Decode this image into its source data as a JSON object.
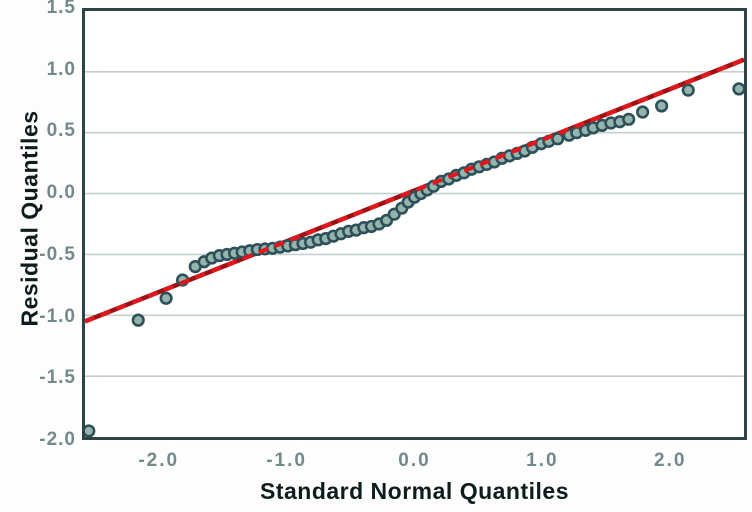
{
  "chart_data": {
    "type": "scatter",
    "title": "",
    "xlabel": "Standard Normal Quantiles",
    "ylabel": "Residual Quantiles",
    "xlim": [
      -2.6,
      2.6
    ],
    "ylim": [
      -2.0,
      1.5
    ],
    "grid": "horizontal-only",
    "legend": "none",
    "x_ticks": {
      "values": [
        -2.0,
        -1.0,
        0.0,
        1.0,
        2.0
      ],
      "labels": [
        "-2.0",
        "-1.0",
        "0.0",
        "1.0",
        "2.0"
      ]
    },
    "y_ticks": {
      "values": [
        1.5,
        1.0,
        0.5,
        0.0,
        -0.5,
        -1.0,
        -1.5,
        -2.0
      ],
      "labels": [
        "1.5",
        "1.0",
        "0.5",
        "0.0",
        "-0.5",
        "-1.0",
        "-1.5",
        "-2.0"
      ]
    },
    "gridline_y_values": [
      1.0,
      0.5,
      0.0,
      -0.5,
      -1.0,
      -1.5
    ],
    "reference_line": {
      "name": "normal-fit-line",
      "x1": -2.6,
      "y1": -1.05,
      "x2": 2.6,
      "y2": 1.1
    },
    "series": [
      {
        "name": "residual-quantile-points",
        "marker": "circle",
        "points": [
          [
            -2.57,
            -1.95
          ],
          [
            -2.18,
            -1.04
          ],
          [
            -1.96,
            -0.86
          ],
          [
            -1.83,
            -0.71
          ],
          [
            -1.73,
            -0.6
          ],
          [
            -1.66,
            -0.56
          ],
          [
            -1.6,
            -0.53
          ],
          [
            -1.54,
            -0.51
          ],
          [
            -1.48,
            -0.5
          ],
          [
            -1.42,
            -0.49
          ],
          [
            -1.36,
            -0.48
          ],
          [
            -1.3,
            -0.47
          ],
          [
            -1.24,
            -0.46
          ],
          [
            -1.18,
            -0.455
          ],
          [
            -1.12,
            -0.45
          ],
          [
            -1.06,
            -0.44
          ],
          [
            -1.0,
            -0.43
          ],
          [
            -0.94,
            -0.42
          ],
          [
            -0.88,
            -0.41
          ],
          [
            -0.82,
            -0.4
          ],
          [
            -0.76,
            -0.38
          ],
          [
            -0.7,
            -0.37
          ],
          [
            -0.64,
            -0.35
          ],
          [
            -0.58,
            -0.33
          ],
          [
            -0.52,
            -0.31
          ],
          [
            -0.46,
            -0.3
          ],
          [
            -0.4,
            -0.28
          ],
          [
            -0.34,
            -0.27
          ],
          [
            -0.28,
            -0.25
          ],
          [
            -0.22,
            -0.22
          ],
          [
            -0.16,
            -0.17
          ],
          [
            -0.1,
            -0.12
          ],
          [
            -0.05,
            -0.07
          ],
          [
            0.0,
            -0.03
          ],
          [
            0.05,
            0.0
          ],
          [
            0.1,
            0.03
          ],
          [
            0.15,
            0.06
          ],
          [
            0.21,
            0.1
          ],
          [
            0.27,
            0.12
          ],
          [
            0.33,
            0.15
          ],
          [
            0.39,
            0.17
          ],
          [
            0.45,
            0.2
          ],
          [
            0.51,
            0.22
          ],
          [
            0.57,
            0.24
          ],
          [
            0.63,
            0.26
          ],
          [
            0.69,
            0.29
          ],
          [
            0.75,
            0.31
          ],
          [
            0.81,
            0.33
          ],
          [
            0.87,
            0.35
          ],
          [
            0.93,
            0.38
          ],
          [
            1.0,
            0.41
          ],
          [
            1.06,
            0.43
          ],
          [
            1.13,
            0.45
          ],
          [
            1.22,
            0.48
          ],
          [
            1.28,
            0.5
          ],
          [
            1.35,
            0.52
          ],
          [
            1.41,
            0.54
          ],
          [
            1.48,
            0.56
          ],
          [
            1.55,
            0.58
          ],
          [
            1.62,
            0.59
          ],
          [
            1.69,
            0.61
          ],
          [
            1.8,
            0.67
          ],
          [
            1.95,
            0.72
          ],
          [
            2.16,
            0.85
          ],
          [
            2.56,
            0.86
          ]
        ]
      }
    ],
    "colors": {
      "plot_border": "#2c4444",
      "gridline": "#c6cfcf",
      "tick_label": "#74898a",
      "axis_title": "#0e1c1c",
      "line_red": "#e0181e",
      "line_red_dark": "#9e1014",
      "marker_stroke": "#2e5058",
      "marker_fill": "#94b4ae"
    }
  }
}
